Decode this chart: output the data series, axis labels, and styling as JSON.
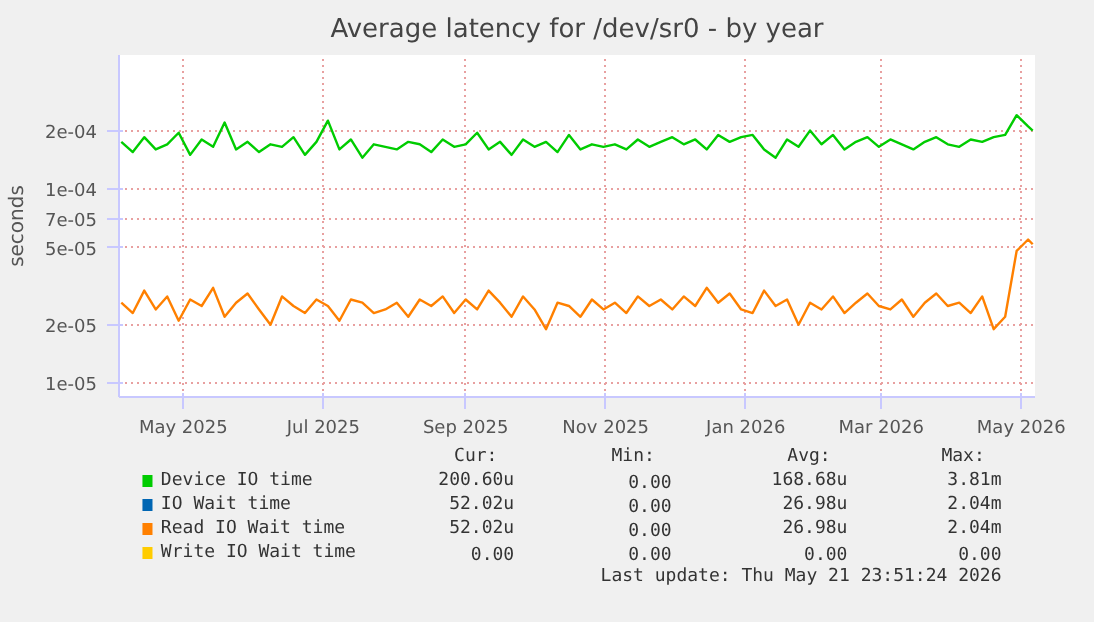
{
  "chart_data": {
    "type": "line",
    "title": "Average latency for /dev/sr0 - by year",
    "ylabel": "seconds",
    "log": "y",
    "grid": true,
    "legend": "bottom",
    "ylim": [
      8.5e-06,
      0.00049
    ],
    "yticks": [
      {
        "value": 1e-05,
        "label": "1e-05"
      },
      {
        "value": 2e-05,
        "label": "2e-05"
      },
      {
        "value": 5e-05,
        "label": "5e-05"
      },
      {
        "value": 7e-05,
        "label": "7e-05"
      },
      {
        "value": 0.0001,
        "label": "1e-04"
      },
      {
        "value": 0.0002,
        "label": "2e-04"
      }
    ],
    "xlim": [
      "2025-04-03",
      "2026-05-07"
    ],
    "xticks": [
      {
        "value": "2025-05-01",
        "label": "May 2025"
      },
      {
        "value": "2025-07-01",
        "label": "Jul 2025"
      },
      {
        "value": "2025-09-01",
        "label": "Sep 2025"
      },
      {
        "value": "2025-11-01",
        "label": "Nov 2025"
      },
      {
        "value": "2026-01-01",
        "label": "Jan 2026"
      },
      {
        "value": "2026-03-01",
        "label": "Mar 2026"
      },
      {
        "value": "2026-05-01",
        "label": "May 2026"
      }
    ],
    "x": [
      "2025-04-04",
      "2025-04-09",
      "2025-04-14",
      "2025-04-19",
      "2025-04-24",
      "2025-04-29",
      "2025-05-04",
      "2025-05-09",
      "2025-05-14",
      "2025-05-19",
      "2025-05-24",
      "2025-05-29",
      "2025-06-03",
      "2025-06-08",
      "2025-06-13",
      "2025-06-18",
      "2025-06-23",
      "2025-06-28",
      "2025-07-03",
      "2025-07-08",
      "2025-07-13",
      "2025-07-18",
      "2025-07-23",
      "2025-07-28",
      "2025-08-02",
      "2025-08-07",
      "2025-08-12",
      "2025-08-17",
      "2025-08-22",
      "2025-08-27",
      "2025-09-01",
      "2025-09-06",
      "2025-09-11",
      "2025-09-16",
      "2025-09-21",
      "2025-09-26",
      "2025-10-01",
      "2025-10-06",
      "2025-10-11",
      "2025-10-16",
      "2025-10-21",
      "2025-10-26",
      "2025-10-31",
      "2025-11-05",
      "2025-11-10",
      "2025-11-15",
      "2025-11-20",
      "2025-11-25",
      "2025-11-30",
      "2025-12-05",
      "2025-12-10",
      "2025-12-15",
      "2025-12-20",
      "2025-12-25",
      "2025-12-30",
      "2026-01-04",
      "2026-01-09",
      "2026-01-14",
      "2026-01-19",
      "2026-01-24",
      "2026-01-29",
      "2026-02-03",
      "2026-02-08",
      "2026-02-13",
      "2026-02-18",
      "2026-02-23",
      "2026-02-28",
      "2026-03-05",
      "2026-03-10",
      "2026-03-15",
      "2026-03-20",
      "2026-03-25",
      "2026-03-30",
      "2026-04-04",
      "2026-04-09",
      "2026-04-14",
      "2026-04-19",
      "2026-04-24",
      "2026-04-29",
      "2026-05-04",
      "2026-05-06"
    ],
    "series": [
      {
        "name": "Device IO time",
        "color": "#00cc00",
        "values": [
          0.000175,
          0.000155,
          0.000185,
          0.00016,
          0.00017,
          0.000195,
          0.00015,
          0.00018,
          0.000165,
          0.00022,
          0.00016,
          0.000175,
          0.000155,
          0.00017,
          0.000165,
          0.000185,
          0.00015,
          0.000175,
          0.000225,
          0.00016,
          0.00018,
          0.000145,
          0.00017,
          0.000165,
          0.00016,
          0.000175,
          0.00017,
          0.000155,
          0.00018,
          0.000165,
          0.00017,
          0.000195,
          0.00016,
          0.000175,
          0.00015,
          0.00018,
          0.000165,
          0.000175,
          0.000155,
          0.00019,
          0.00016,
          0.00017,
          0.000165,
          0.00017,
          0.00016,
          0.00018,
          0.000165,
          0.000175,
          0.000185,
          0.00017,
          0.00018,
          0.00016,
          0.00019,
          0.000175,
          0.000185,
          0.00019,
          0.00016,
          0.000145,
          0.00018,
          0.000165,
          0.0002,
          0.00017,
          0.00019,
          0.00016,
          0.000175,
          0.000185,
          0.000165,
          0.00018,
          0.00017,
          0.00016,
          0.000175,
          0.000185,
          0.00017,
          0.000165,
          0.00018,
          0.000175,
          0.000185,
          0.00019,
          0.00024,
          0.00021,
          0.0002
        ]
      },
      {
        "name": "IO Wait time",
        "color": "#0066b3",
        "values": [
          null,
          null,
          null,
          null,
          null,
          null,
          null,
          null,
          null,
          null,
          null,
          null,
          null,
          null,
          null,
          null,
          null,
          null,
          null,
          null,
          null,
          null,
          null,
          null,
          null,
          null,
          null,
          null,
          null,
          null,
          null,
          null,
          null,
          null,
          null,
          null,
          null,
          null,
          null,
          null,
          null,
          null,
          null,
          null,
          null,
          null,
          null,
          null,
          null,
          null,
          null,
          null,
          null,
          null,
          null,
          null,
          null,
          null,
          null,
          null,
          null,
          null,
          null,
          null,
          null,
          null,
          null,
          null,
          null,
          null,
          null,
          null,
          null,
          null,
          null,
          null,
          null,
          null,
          null,
          null,
          null
        ]
      },
      {
        "name": "Read IO Wait time",
        "color": "#ff8000",
        "values": [
          2.6e-05,
          2.3e-05,
          3e-05,
          2.4e-05,
          2.8e-05,
          2.1e-05,
          2.7e-05,
          2.5e-05,
          3.1e-05,
          2.2e-05,
          2.6e-05,
          2.9e-05,
          2.4e-05,
          2e-05,
          2.8e-05,
          2.5e-05,
          2.3e-05,
          2.7e-05,
          2.5e-05,
          2.1e-05,
          2.7e-05,
          2.6e-05,
          2.3e-05,
          2.4e-05,
          2.6e-05,
          2.2e-05,
          2.7e-05,
          2.5e-05,
          2.8e-05,
          2.3e-05,
          2.7e-05,
          2.4e-05,
          3e-05,
          2.6e-05,
          2.2e-05,
          2.8e-05,
          2.4e-05,
          1.9e-05,
          2.6e-05,
          2.5e-05,
          2.2e-05,
          2.7e-05,
          2.4e-05,
          2.6e-05,
          2.3e-05,
          2.8e-05,
          2.5e-05,
          2.7e-05,
          2.4e-05,
          2.8e-05,
          2.5e-05,
          3.1e-05,
          2.6e-05,
          2.9e-05,
          2.4e-05,
          2.3e-05,
          3e-05,
          2.5e-05,
          2.7e-05,
          2e-05,
          2.6e-05,
          2.4e-05,
          2.8e-05,
          2.3e-05,
          2.6e-05,
          2.9e-05,
          2.5e-05,
          2.4e-05,
          2.7e-05,
          2.2e-05,
          2.6e-05,
          2.9e-05,
          2.5e-05,
          2.6e-05,
          2.3e-05,
          2.8e-05,
          1.9e-05,
          2.2e-05,
          4.8e-05,
          5.5e-05,
          5.2e-05
        ]
      },
      {
        "name": "Write IO Wait time",
        "color": "#ffcc00",
        "values": [
          null,
          null,
          null,
          null,
          null,
          null,
          null,
          null,
          null,
          null,
          null,
          null,
          null,
          null,
          null,
          null,
          null,
          null,
          null,
          null,
          null,
          null,
          null,
          null,
          null,
          null,
          null,
          null,
          null,
          null,
          null,
          null,
          null,
          null,
          null,
          null,
          null,
          null,
          null,
          null,
          null,
          null,
          null,
          null,
          null,
          null,
          null,
          null,
          null,
          null,
          null,
          null,
          null,
          null,
          null,
          null,
          null,
          null,
          null,
          null,
          null,
          null,
          null,
          null,
          null,
          null,
          null,
          null,
          null,
          null,
          null,
          null,
          null,
          null,
          null,
          null,
          null,
          null,
          null,
          null,
          null
        ]
      }
    ],
    "annotations": [
      "Cur:",
      "Min:",
      "Avg:",
      "Max:",
      "200.60u",
      "0.00",
      "168.68u",
      "3.81m",
      "52.02u",
      "0.00",
      "26.98u",
      "2.04m",
      "52.02u",
      "0.00",
      "26.98u",
      "2.04m",
      "0.00",
      "0.00",
      "0.00",
      "0.00",
      "Last update: Thu May 21 23:51:24 2026"
    ]
  }
}
